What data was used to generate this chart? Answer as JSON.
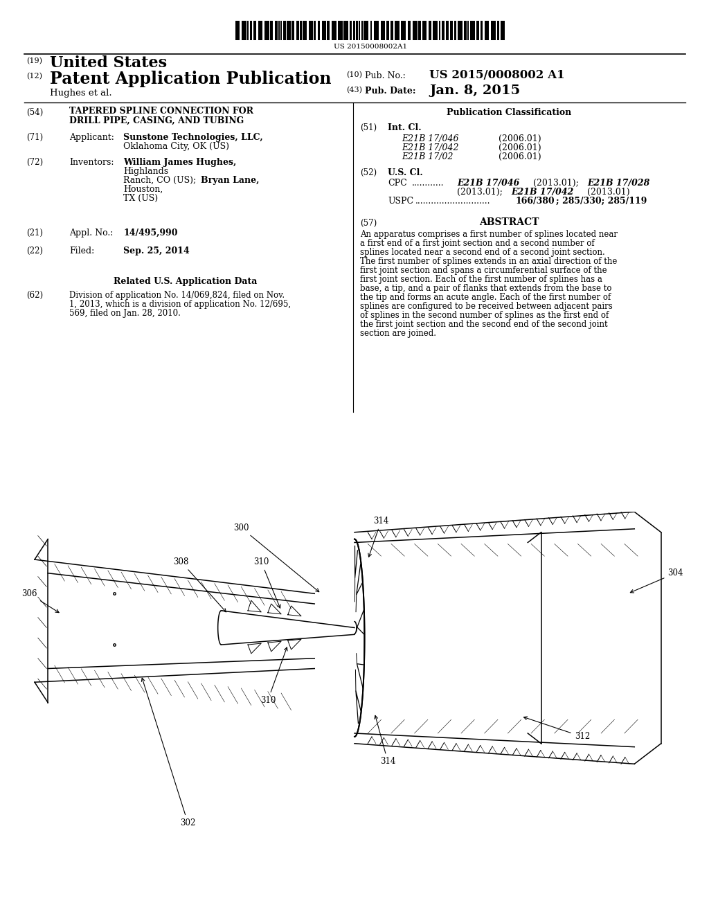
{
  "bg_color": "#ffffff",
  "barcode_text": "US 20150008002A1",
  "abstract_text": "An apparatus comprises a first number of splines located near a first end of a first joint section and a second number of splines located near a second end of a second joint section. The first number of splines extends in an axial direction of the first joint section and spans a circumferential surface of the first joint section. Each of the first number of splines has a base, a tip, and a pair of flanks that extends from the base to the tip and forms an acute angle. Each of the first number of splines are configured to be received between adjacent pairs of splines in the second number of splines as the first end of the first joint section and the second end of the second joint section are joined.",
  "int_cl_entries": [
    [
      "E21B 17/046",
      "(2006.01)"
    ],
    [
      "E21B 17/042",
      "(2006.01)"
    ],
    [
      "E21B 17/02",
      "(2006.01)"
    ]
  ]
}
